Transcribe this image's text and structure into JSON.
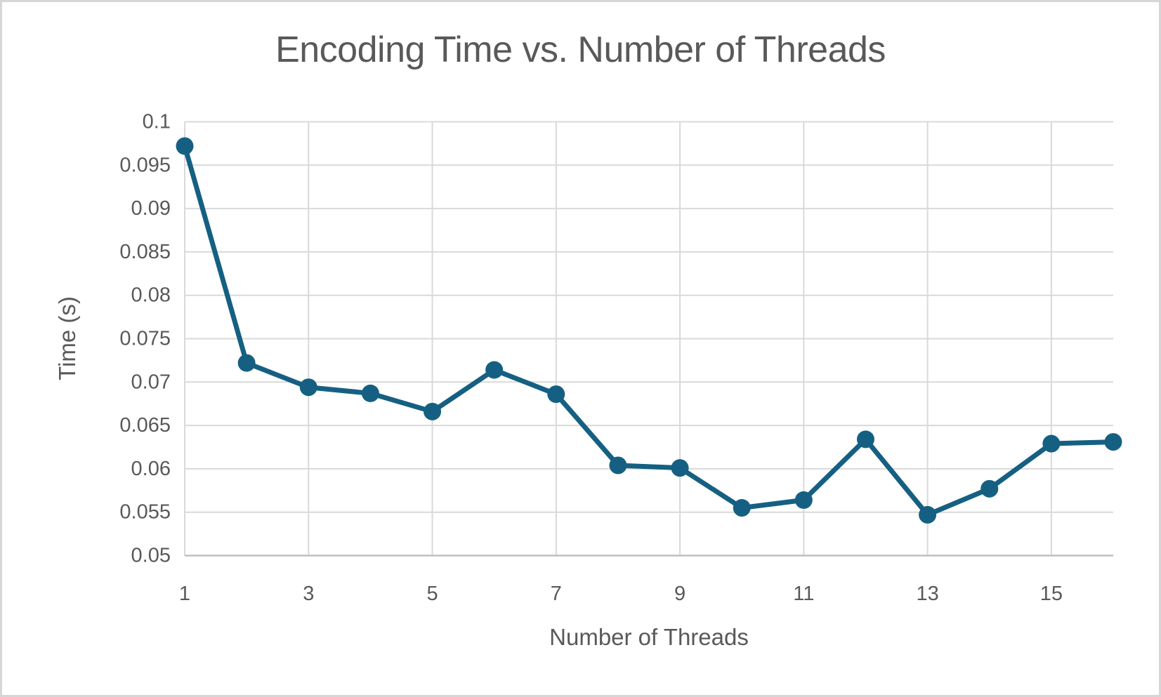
{
  "chart_data": {
    "type": "line",
    "title": "Encoding Time vs. Number of Threads",
    "xlabel": "Number of Threads",
    "ylabel": "Time (s)",
    "x": [
      1,
      2,
      3,
      4,
      5,
      6,
      7,
      8,
      9,
      10,
      11,
      12,
      13,
      14,
      15,
      16
    ],
    "values": [
      0.0972,
      0.0722,
      0.0694,
      0.0687,
      0.0666,
      0.0714,
      0.0686,
      0.0604,
      0.0601,
      0.0555,
      0.0564,
      0.0634,
      0.0547,
      0.0577,
      0.0629,
      0.0631
    ],
    "xlim": [
      1,
      16
    ],
    "ylim": [
      0.05,
      0.1
    ],
    "xticks": {
      "values": [
        1,
        3,
        5,
        7,
        9,
        11,
        13,
        15
      ],
      "labels": [
        "1",
        "3",
        "5",
        "7",
        "9",
        "11",
        "13",
        "15"
      ]
    },
    "yticks": {
      "values": [
        0.1,
        0.095,
        0.09,
        0.085,
        0.08,
        0.075,
        0.07,
        0.065,
        0.06,
        0.055,
        0.05
      ],
      "labels": [
        "0.1",
        "0.095",
        "0.09",
        "0.085",
        "0.08",
        "0.075",
        "0.07",
        "0.065",
        "0.06",
        "0.055",
        "0.05"
      ]
    },
    "grid": "both",
    "legend": "none",
    "marker": "circle",
    "colors": {
      "series": "#156082",
      "gridline": "#d9d9d9",
      "axis_line": "#bfbfbf",
      "text": "#595959",
      "background": "#ffffff",
      "border": "#d6d6d6"
    }
  }
}
